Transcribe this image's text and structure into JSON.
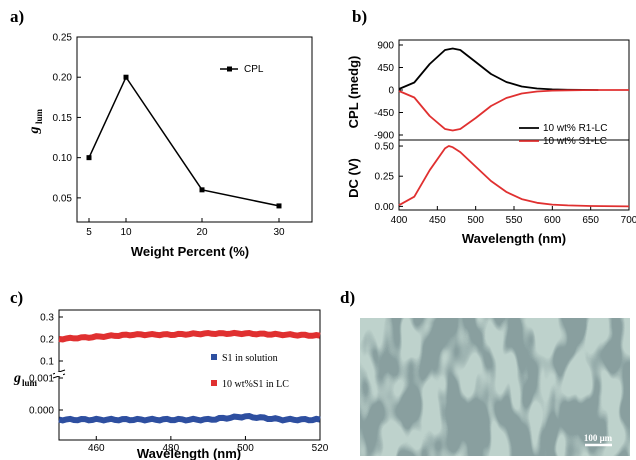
{
  "panel_labels": {
    "a": "a)",
    "b": "b)",
    "c": "c)",
    "d": "d)"
  },
  "colors": {
    "black": "#000000",
    "red": "#e03030",
    "blue": "#2e4fa0"
  },
  "chart_data": [
    {
      "id": "a",
      "type": "line",
      "xlabel": "Weight Percent (%)",
      "ylabel_main": "g",
      "ylabel_sub": "lum",
      "x_ticks": [
        "5",
        "10",
        "20",
        "30"
      ],
      "y_ticks": [
        "0.05",
        "0.10",
        "0.15",
        "0.20",
        "0.25"
      ],
      "ylim": [
        0.02,
        0.25
      ],
      "grid": false,
      "legend_position": "top-right",
      "series": [
        {
          "name": "CPL",
          "x": [
            5,
            10,
            20,
            30
          ],
          "values": [
            0.1,
            0.2,
            0.06,
            0.04
          ]
        }
      ]
    },
    {
      "id": "b",
      "type": "line",
      "xlabel": "Wavelength (nm)",
      "x_ticks": [
        "400",
        "450",
        "500",
        "550",
        "600",
        "650",
        "700"
      ],
      "xlim": [
        400,
        700
      ],
      "top": {
        "ylabel": "CPL (medg)",
        "y_ticks": [
          "900",
          "450",
          "0",
          "-450",
          "-900"
        ],
        "ylim": [
          -1000,
          1000
        ],
        "series": [
          {
            "name": "10 wt% R1-LC",
            "color": "black",
            "x": [
              400,
              420,
              440,
              460,
              470,
              480,
              500,
              520,
              540,
              560,
              580,
              600,
              620,
              640,
              660
            ],
            "values": [
              20,
              150,
              520,
              800,
              830,
              800,
              560,
              320,
              160,
              70,
              30,
              12,
              5,
              2,
              0
            ]
          },
          {
            "name": "10 wt% S1-LC",
            "color": "red",
            "x": [
              400,
              420,
              440,
              460,
              470,
              480,
              500,
              520,
              540,
              560,
              580,
              600,
              620,
              640,
              660,
              700
            ],
            "values": [
              -20,
              -150,
              -520,
              -780,
              -810,
              -780,
              -560,
              -320,
              -160,
              -70,
              -30,
              -12,
              -5,
              -2,
              0,
              0
            ]
          }
        ]
      },
      "bottom": {
        "ylabel": "DC (V)",
        "y_ticks": [
          "0.50",
          "0.25",
          "0.00"
        ],
        "ylim": [
          -0.03,
          0.55
        ],
        "series": [
          {
            "name": "DC",
            "color": "red",
            "x": [
              400,
              420,
              440,
              460,
              465,
              470,
              480,
              500,
              520,
              540,
              560,
              580,
              600,
              620,
              650,
              700
            ],
            "values": [
              0.01,
              0.08,
              0.3,
              0.48,
              0.5,
              0.49,
              0.45,
              0.33,
              0.21,
              0.12,
              0.06,
              0.03,
              0.015,
              0.008,
              0.003,
              0.0
            ]
          }
        ]
      },
      "legend_position": "right"
    },
    {
      "id": "c",
      "type": "scatter",
      "xlabel": "Wavelength (nm)",
      "ylabel_main": "g",
      "ylabel_sub": "lum",
      "x_ticks": [
        "460",
        "480",
        "500",
        "520"
      ],
      "xlim": [
        450,
        520
      ],
      "y_ticks_upper": [
        "0.3",
        "0.2",
        "0.1"
      ],
      "y_ticks_lower": [
        "0.001",
        "0.000"
      ],
      "axis_break": true,
      "legend_position": "center",
      "series": [
        {
          "name": "S1 in solution",
          "color": "blue",
          "x": [
            450,
            460,
            470,
            480,
            490,
            500,
            510,
            520
          ],
          "values": [
            -0.0003,
            -0.0003,
            -0.0003,
            -0.0003,
            -0.0003,
            -0.0002,
            -0.0003,
            -0.0003
          ]
        },
        {
          "name": "10 wt%S1 in LC",
          "color": "red",
          "x": [
            450,
            460,
            470,
            480,
            490,
            500,
            510,
            520
          ],
          "values": [
            0.2,
            0.21,
            0.22,
            0.22,
            0.225,
            0.225,
            0.22,
            0.215
          ]
        }
      ]
    }
  ],
  "micrograph": {
    "scale_bar_label": "100 μm"
  }
}
